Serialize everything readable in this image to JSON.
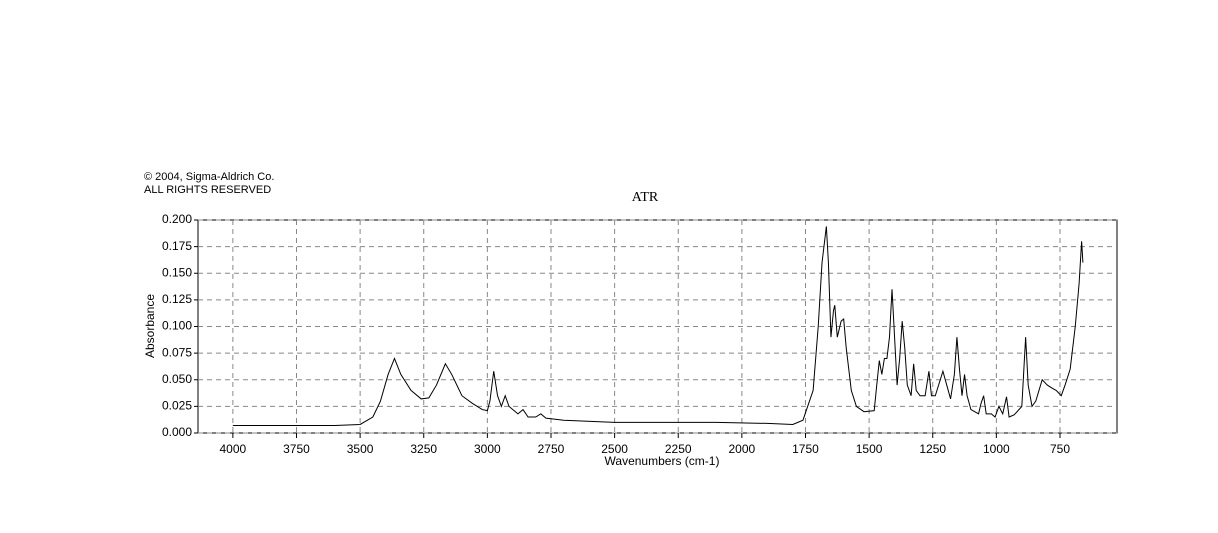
{
  "copyright": [
    "© 2004, Sigma-Aldrich Co.",
    "ALL RIGHTS RESERVED"
  ],
  "chart_data": {
    "type": "line",
    "title": "ATR",
    "x_label": "Wavenumbers (cm-1)",
    "y_label": "Absorbance",
    "color": "#000000",
    "grid": true,
    "xlim": [
      4137,
      526
    ],
    "ylim": [
      0,
      0.2
    ],
    "xticks": [
      4000,
      3750,
      3500,
      3250,
      3000,
      2750,
      2500,
      2250,
      2000,
      1750,
      1500,
      1250,
      1000,
      750
    ],
    "yticks": [
      {
        "value": 0,
        "label": "0.000"
      },
      {
        "value": 0.025,
        "label": "0.025"
      },
      {
        "value": 0.05,
        "label": "0.050"
      },
      {
        "value": 0.075,
        "label": "0.075"
      },
      {
        "value": 0.1,
        "label": "0.100"
      },
      {
        "value": 0.125,
        "label": "0.125"
      },
      {
        "value": 0.15,
        "label": "0.150"
      },
      {
        "value": 0.175,
        "label": "0.175"
      },
      {
        "value": 0.2,
        "label": "0.200"
      }
    ],
    "x": [
      4000,
      3800,
      3600,
      3500,
      3450,
      3420,
      3390,
      3365,
      3340,
      3300,
      3260,
      3230,
      3200,
      3165,
      3140,
      3100,
      3060,
      3020,
      3000,
      2990,
      2975,
      2960,
      2945,
      2930,
      2915,
      2880,
      2860,
      2840,
      2810,
      2790,
      2770,
      2700,
      2500,
      2300,
      2100,
      1900,
      1800,
      1760,
      1720,
      1700,
      1685,
      1668,
      1660,
      1650,
      1640,
      1635,
      1625,
      1610,
      1600,
      1590,
      1570,
      1550,
      1520,
      1480,
      1470,
      1460,
      1450,
      1440,
      1430,
      1420,
      1410,
      1400,
      1390,
      1380,
      1370,
      1360,
      1350,
      1335,
      1325,
      1315,
      1300,
      1280,
      1265,
      1255,
      1240,
      1210,
      1195,
      1180,
      1165,
      1155,
      1145,
      1135,
      1125,
      1115,
      1100,
      1070,
      1060,
      1050,
      1040,
      1020,
      1005,
      990,
      975,
      960,
      950,
      930,
      900,
      885,
      875,
      860,
      845,
      820,
      800,
      780,
      765,
      745,
      730,
      710,
      690,
      675,
      665,
      660
    ],
    "values": [
      0.007,
      0.007,
      0.007,
      0.008,
      0.015,
      0.03,
      0.055,
      0.07,
      0.055,
      0.04,
      0.032,
      0.033,
      0.045,
      0.065,
      0.055,
      0.035,
      0.028,
      0.022,
      0.021,
      0.03,
      0.058,
      0.035,
      0.025,
      0.035,
      0.025,
      0.018,
      0.022,
      0.015,
      0.015,
      0.018,
      0.014,
      0.012,
      0.01,
      0.01,
      0.01,
      0.009,
      0.008,
      0.012,
      0.04,
      0.1,
      0.16,
      0.194,
      0.16,
      0.09,
      0.115,
      0.12,
      0.09,
      0.105,
      0.107,
      0.08,
      0.04,
      0.025,
      0.02,
      0.021,
      0.045,
      0.068,
      0.055,
      0.07,
      0.07,
      0.09,
      0.135,
      0.09,
      0.045,
      0.07,
      0.105,
      0.08,
      0.045,
      0.035,
      0.065,
      0.04,
      0.035,
      0.035,
      0.058,
      0.035,
      0.035,
      0.058,
      0.045,
      0.032,
      0.055,
      0.09,
      0.06,
      0.035,
      0.055,
      0.035,
      0.022,
      0.018,
      0.028,
      0.035,
      0.018,
      0.018,
      0.015,
      0.025,
      0.018,
      0.034,
      0.015,
      0.017,
      0.025,
      0.09,
      0.045,
      0.025,
      0.03,
      0.05,
      0.045,
      0.042,
      0.04,
      0.035,
      0.045,
      0.06,
      0.1,
      0.14,
      0.18,
      0.16
    ]
  }
}
